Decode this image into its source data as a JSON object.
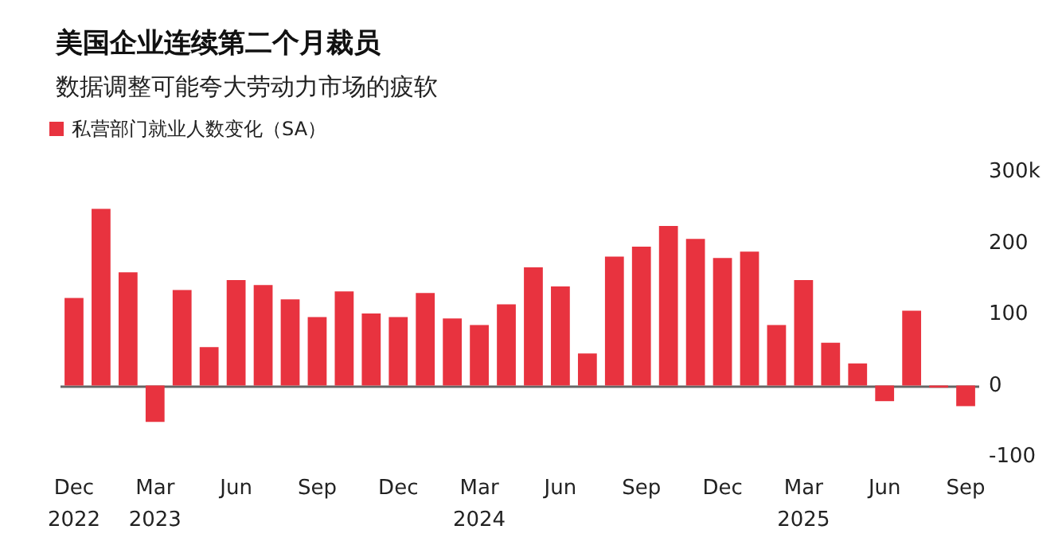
{
  "chart_data": {
    "type": "bar",
    "title": "美国企业连续第二个月裁员",
    "subtitle": "数据调整可能夸大劳动力市场的疲软",
    "categories": [
      "Dec\n2022",
      null,
      null,
      "Mar\n2023",
      null,
      null,
      "Jun",
      null,
      null,
      "Sep",
      null,
      null,
      "Dec",
      null,
      null,
      "Mar\n2024",
      null,
      null,
      "Jun",
      null,
      null,
      "Sep",
      null,
      null,
      "Dec",
      null,
      null,
      "Mar\n2025",
      null,
      null,
      "Jun",
      null,
      null,
      "Sep"
    ],
    "series": [
      {
        "name": "私营部门就业人数变化（SA）",
        "color": "#e8333f",
        "values": [
          123,
          248,
          159,
          -51,
          134,
          54,
          148,
          141,
          121,
          96,
          132,
          101,
          96,
          130,
          94,
          85,
          114,
          166,
          139,
          45,
          181,
          195,
          224,
          206,
          179,
          188,
          85,
          148,
          60,
          31,
          -22,
          105,
          -3,
          -29
        ]
      }
    ],
    "ylim": [
      -100,
      300
    ],
    "ref_lines": [
      {
        "axis": "y",
        "value": 0,
        "color": "#666666"
      }
    ],
    "yticks": [
      {
        "value": -100,
        "label": "-100"
      },
      0,
      100,
      200,
      {
        "value": 300,
        "label": "300k"
      }
    ],
    "grid": false,
    "legend": "top left"
  }
}
